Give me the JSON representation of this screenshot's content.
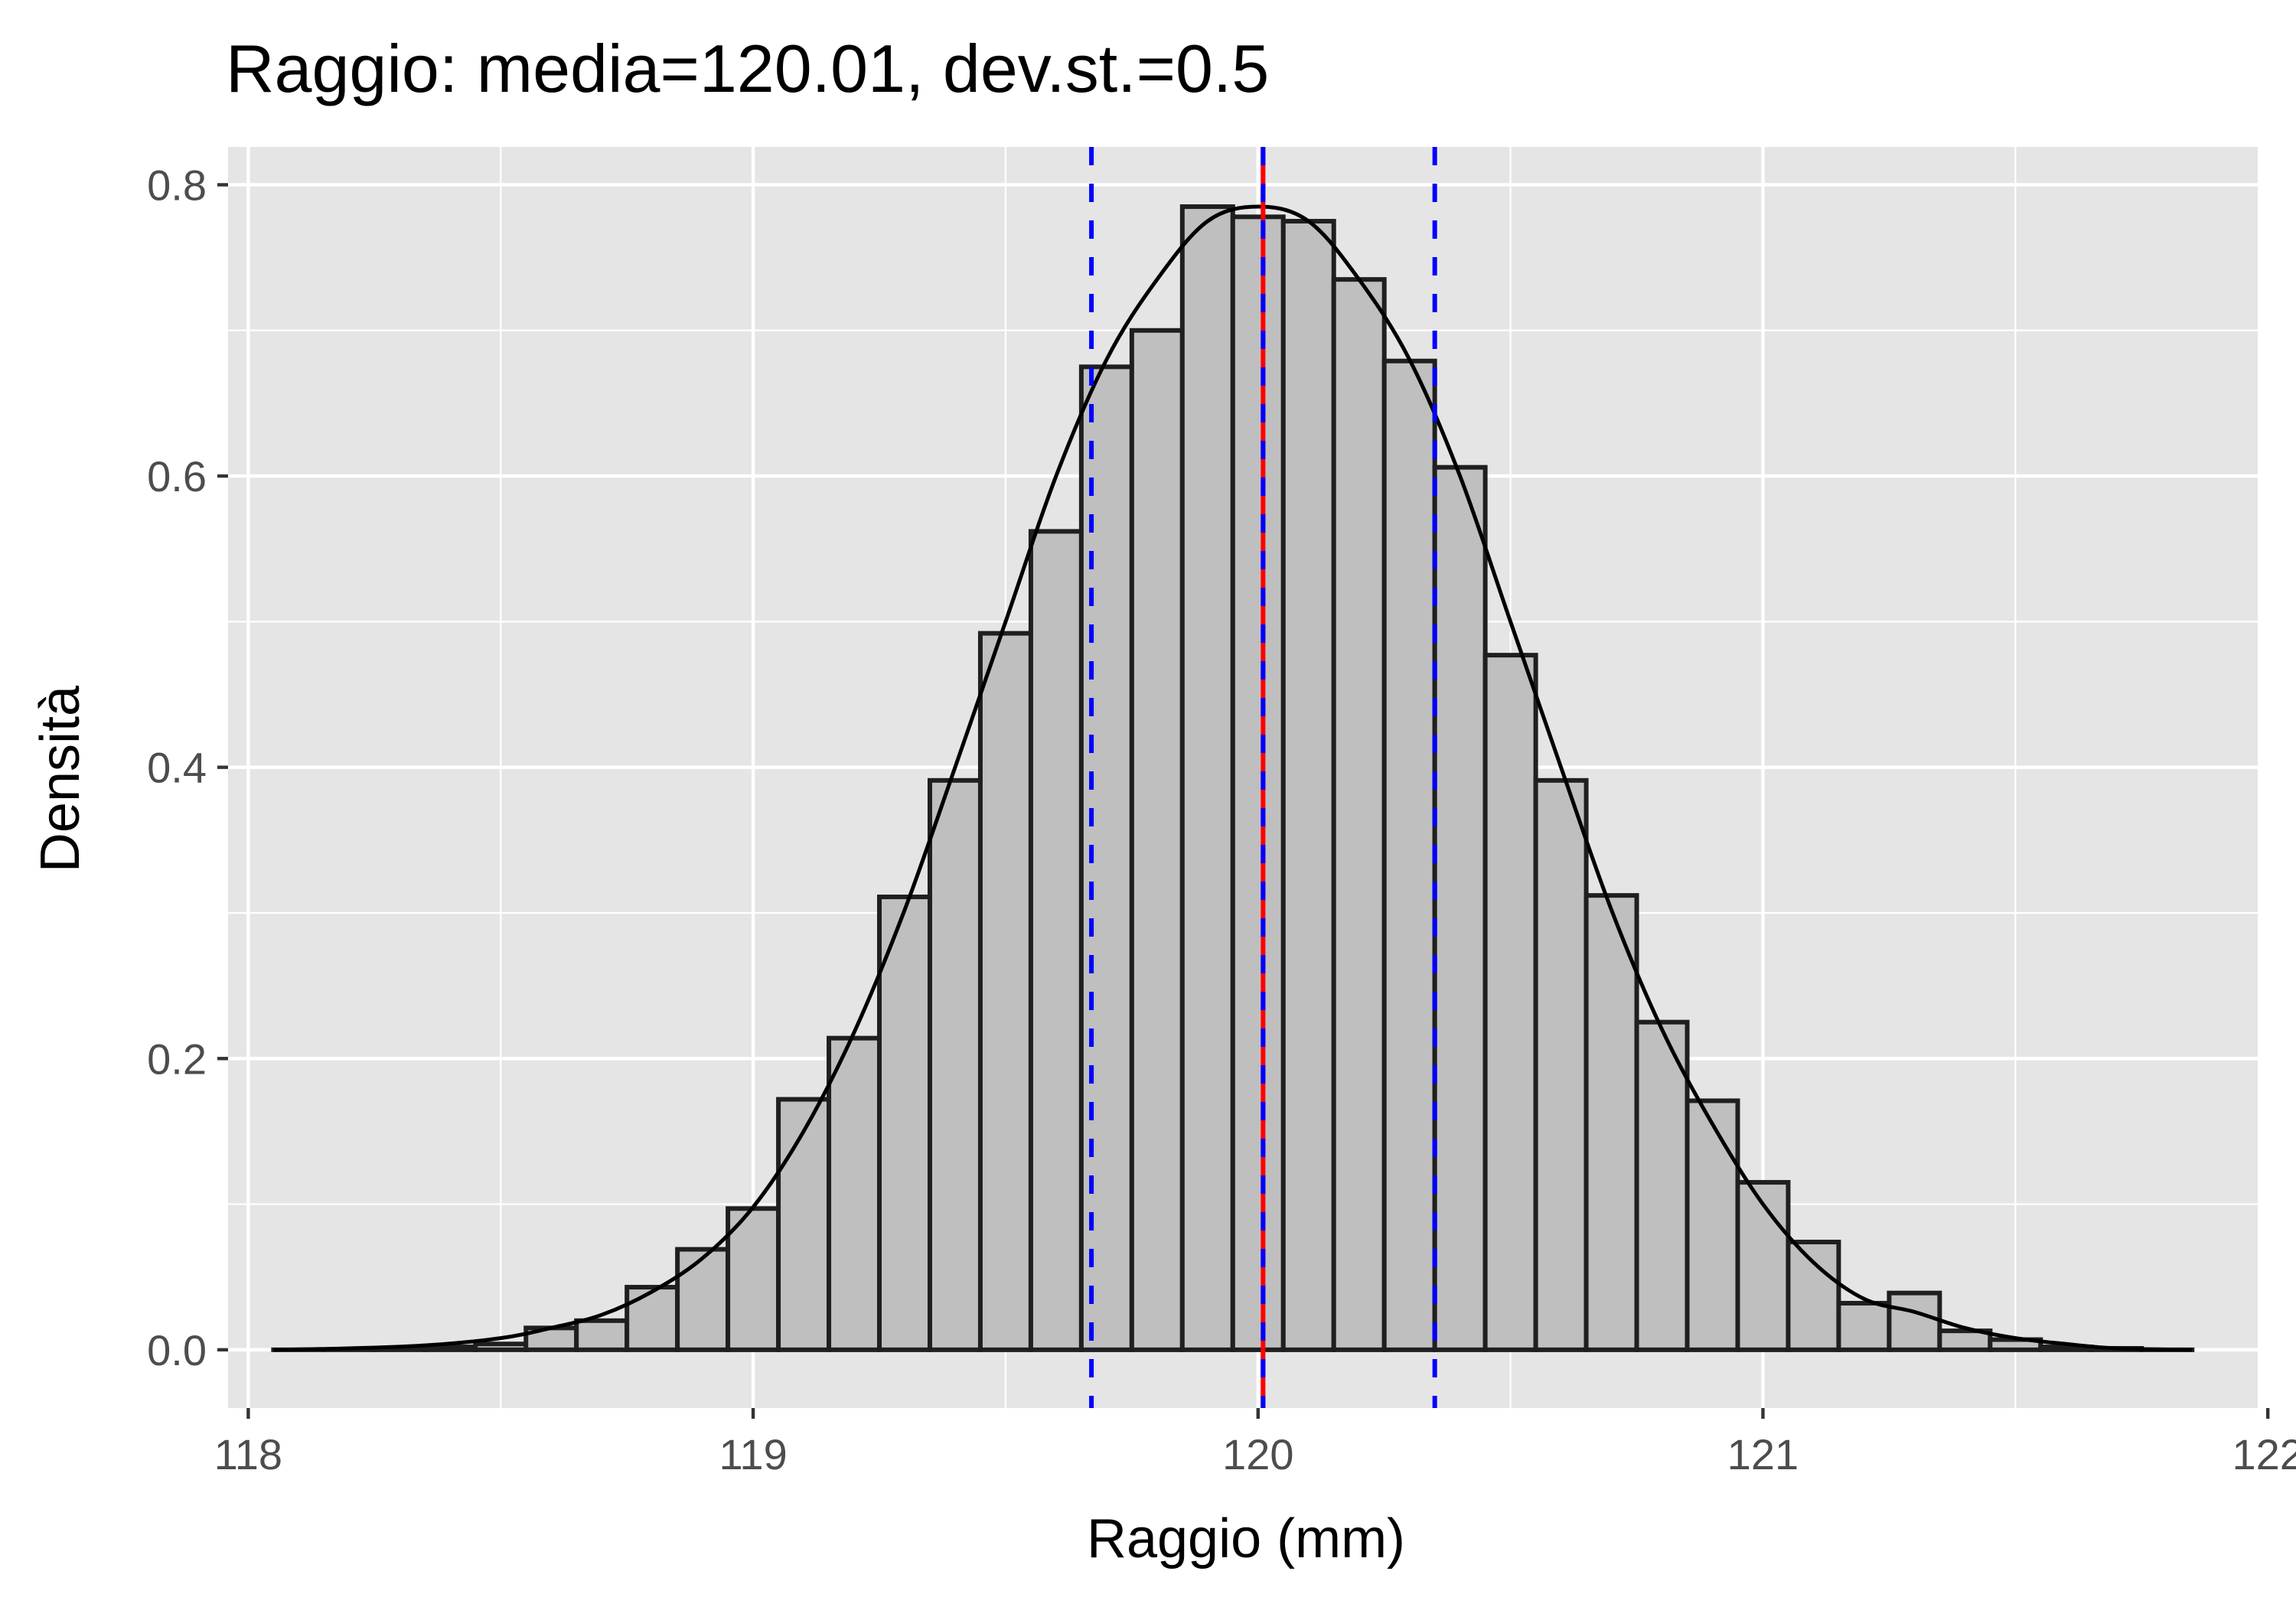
{
  "chart_data": {
    "type": "bar",
    "title": "Raggio: media=120.01, dev.st.=0.5",
    "xlabel": "Raggio (mm)",
    "ylabel": "Densità",
    "xlim": [
      117.96,
      121.98
    ],
    "ylim": [
      -0.04,
      0.826
    ],
    "x_ticks": [
      118,
      119,
      120,
      121,
      122
    ],
    "x_tick_labels": [
      "118",
      "119",
      "120",
      "121",
      "122"
    ],
    "y_ticks": [
      0.0,
      0.2,
      0.4,
      0.6,
      0.8
    ],
    "y_tick_labels": [
      "0.0",
      "0.2",
      "0.4",
      "0.6",
      "0.8"
    ],
    "grid": true,
    "bin_width": 0.1,
    "bins": [
      {
        "x0": 118.05,
        "x1": 118.15,
        "density": 0.0
      },
      {
        "x0": 118.15,
        "x1": 118.25,
        "density": 0.0
      },
      {
        "x0": 118.25,
        "x1": 118.35,
        "density": 0.001
      },
      {
        "x0": 118.35,
        "x1": 118.45,
        "density": 0.002
      },
      {
        "x0": 118.45,
        "x1": 118.55,
        "density": 0.004
      },
      {
        "x0": 118.55,
        "x1": 118.65,
        "density": 0.015
      },
      {
        "x0": 118.65,
        "x1": 118.75,
        "density": 0.02
      },
      {
        "x0": 118.75,
        "x1": 118.85,
        "density": 0.043
      },
      {
        "x0": 118.85,
        "x1": 118.95,
        "density": 0.069
      },
      {
        "x0": 118.95,
        "x1": 119.05,
        "density": 0.097
      },
      {
        "x0": 119.05,
        "x1": 119.15,
        "density": 0.172
      },
      {
        "x0": 119.15,
        "x1": 119.25,
        "density": 0.214
      },
      {
        "x0": 119.25,
        "x1": 119.35,
        "density": 0.311
      },
      {
        "x0": 119.35,
        "x1": 119.45,
        "density": 0.391
      },
      {
        "x0": 119.45,
        "x1": 119.55,
        "density": 0.492
      },
      {
        "x0": 119.55,
        "x1": 119.65,
        "density": 0.562
      },
      {
        "x0": 119.65,
        "x1": 119.75,
        "density": 0.675
      },
      {
        "x0": 119.75,
        "x1": 119.85,
        "density": 0.7
      },
      {
        "x0": 119.85,
        "x1": 119.95,
        "density": 0.785
      },
      {
        "x0": 119.95,
        "x1": 120.05,
        "density": 0.778
      },
      {
        "x0": 120.05,
        "x1": 120.15,
        "density": 0.775
      },
      {
        "x0": 120.15,
        "x1": 120.25,
        "density": 0.735
      },
      {
        "x0": 120.25,
        "x1": 120.35,
        "density": 0.679
      },
      {
        "x0": 120.35,
        "x1": 120.45,
        "density": 0.606
      },
      {
        "x0": 120.45,
        "x1": 120.55,
        "density": 0.477
      },
      {
        "x0": 120.55,
        "x1": 120.65,
        "density": 0.391
      },
      {
        "x0": 120.65,
        "x1": 120.75,
        "density": 0.312
      },
      {
        "x0": 120.75,
        "x1": 120.85,
        "density": 0.225
      },
      {
        "x0": 120.85,
        "x1": 120.95,
        "density": 0.171
      },
      {
        "x0": 120.95,
        "x1": 121.05,
        "density": 0.115
      },
      {
        "x0": 121.05,
        "x1": 121.15,
        "density": 0.074
      },
      {
        "x0": 121.15,
        "x1": 121.25,
        "density": 0.032
      },
      {
        "x0": 121.25,
        "x1": 121.35,
        "density": 0.039
      },
      {
        "x0": 121.35,
        "x1": 121.45,
        "density": 0.013
      },
      {
        "x0": 121.45,
        "x1": 121.55,
        "density": 0.007
      },
      {
        "x0": 121.55,
        "x1": 121.65,
        "density": 0.002
      },
      {
        "x0": 121.65,
        "x1": 121.75,
        "density": 0.001
      },
      {
        "x0": 121.75,
        "x1": 121.85,
        "density": 0.0
      }
    ],
    "density_curve": {
      "x": [
        118.05,
        118.2,
        118.35,
        118.5,
        118.6,
        118.7,
        118.8,
        118.9,
        119.0,
        119.1,
        119.2,
        119.3,
        119.4,
        119.5,
        119.6,
        119.7,
        119.8,
        119.9,
        120.0,
        120.1,
        120.2,
        120.3,
        120.4,
        120.5,
        120.6,
        120.7,
        120.8,
        120.9,
        121.0,
        121.1,
        121.2,
        121.3,
        121.4,
        121.5,
        121.6,
        121.7,
        121.85
      ],
      "y": [
        0.0,
        0.001,
        0.003,
        0.008,
        0.015,
        0.024,
        0.04,
        0.063,
        0.098,
        0.15,
        0.218,
        0.302,
        0.4,
        0.5,
        0.6,
        0.68,
        0.735,
        0.775,
        0.785,
        0.775,
        0.735,
        0.68,
        0.6,
        0.5,
        0.4,
        0.302,
        0.22,
        0.155,
        0.1,
        0.06,
        0.035,
        0.026,
        0.015,
        0.008,
        0.004,
        0.001,
        0.0
      ]
    },
    "vlines": [
      {
        "x": 120.01,
        "color": "#ff0000",
        "style": "solid"
      },
      {
        "x": 119.67,
        "color": "#0000ff",
        "style": "dashed"
      },
      {
        "x": 120.01,
        "color": "#0000ff",
        "style": "dashed"
      },
      {
        "x": 120.35,
        "color": "#0000ff",
        "style": "dashed"
      }
    ],
    "colors": {
      "panel_background": "#e5e5e5",
      "grid": "#ffffff",
      "bar_fill": "#bfbfbf",
      "bar_outline": "#1f1f1f",
      "curve": "#000000"
    }
  }
}
